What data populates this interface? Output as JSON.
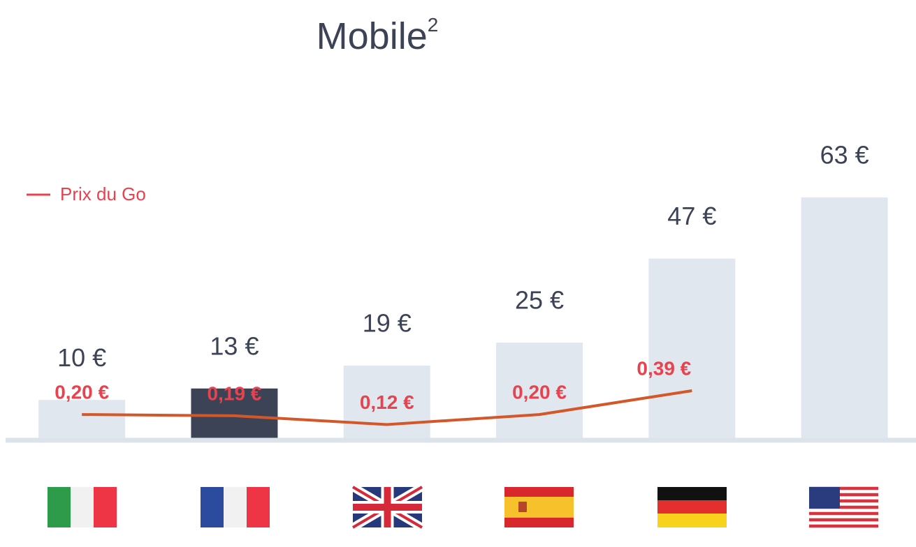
{
  "chart_data": {
    "type": "bar",
    "title": "Mobile",
    "title_superscript": "2",
    "categories": [
      null,
      null,
      null,
      null,
      null,
      null
    ],
    "values": [
      10,
      13,
      19,
      25,
      47,
      63
    ],
    "value_labels": [
      "10 €",
      "13 €",
      "19 €",
      "25 €",
      "47 €",
      "63 €"
    ],
    "colors": [
      "#e1e7ef",
      "#3d4356",
      "#e1e7ef",
      "#e1e7ef",
      "#e1e7ef",
      "#e1e7ef"
    ],
    "line": {
      "name": "Prix du Go",
      "color": "#d4572a",
      "label_color": "#e8424f",
      "values": [
        0.2,
        0.19,
        0.12,
        0.2,
        0.39,
        null
      ],
      "value_labels": [
        "0,20 €",
        "0,19 €",
        "0,12 €",
        "0,20 €",
        "0,39 €",
        null
      ]
    }
  }
}
